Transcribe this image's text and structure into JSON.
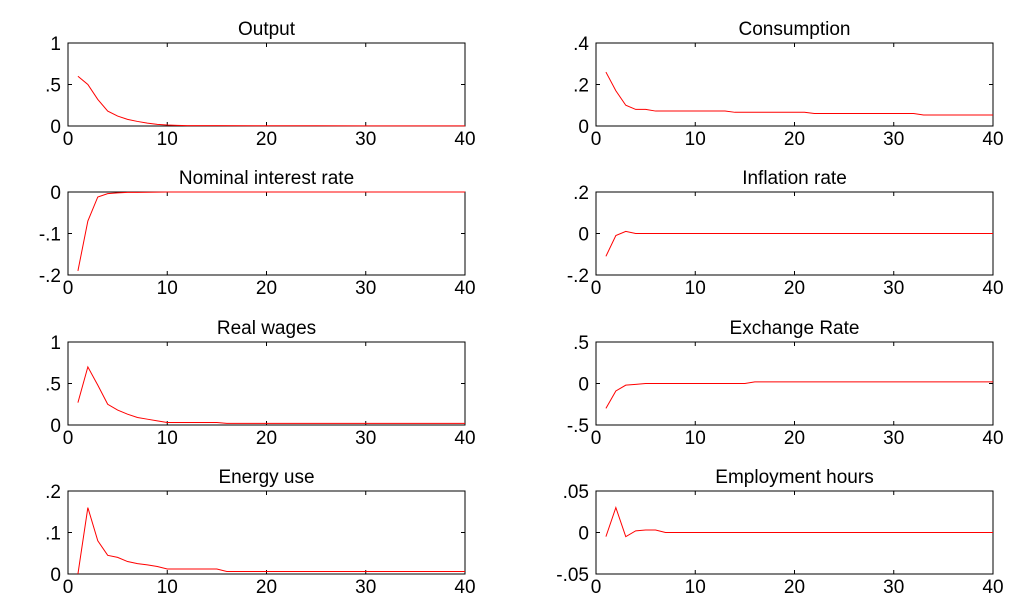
{
  "figure": {
    "line_color": "#ff0000",
    "axis_color": "#000000",
    "background": "#ffffff"
  },
  "chart_data": [
    {
      "type": "line",
      "title": "Output",
      "xlim": [
        0,
        40
      ],
      "ylim": [
        0,
        1
      ],
      "xticks": [
        0,
        10,
        20,
        30,
        40
      ],
      "yticks": [
        0,
        0.5,
        1
      ],
      "grid": false,
      "series": [
        {
          "color": "#ff0000",
          "x": [
            1,
            2,
            3,
            4,
            5,
            6,
            7,
            8,
            9,
            10,
            11,
            12,
            15,
            20,
            25,
            30,
            35,
            40
          ],
          "y": [
            0.6,
            0.5,
            0.32,
            0.18,
            0.12,
            0.08,
            0.055,
            0.035,
            0.02,
            0.012,
            0.008,
            0.005,
            0.004,
            0.003,
            0.003,
            0.002,
            0.002,
            0.002
          ]
        }
      ]
    },
    {
      "type": "line",
      "title": "Consumption",
      "xlim": [
        0,
        40
      ],
      "ylim": [
        0,
        0.4
      ],
      "xticks": [
        0,
        10,
        20,
        30,
        40
      ],
      "yticks": [
        0,
        0.2,
        0.4
      ],
      "grid": false,
      "series": [
        {
          "color": "#ff0000",
          "x": [
            1,
            2,
            3,
            4,
            5,
            6,
            7,
            13,
            14,
            21,
            22,
            32,
            33,
            40
          ],
          "y": [
            0.26,
            0.17,
            0.1,
            0.08,
            0.08,
            0.072,
            0.072,
            0.072,
            0.066,
            0.066,
            0.06,
            0.06,
            0.053,
            0.053
          ]
        }
      ]
    },
    {
      "type": "line",
      "title": "Nominal interest rate",
      "xlim": [
        0,
        40
      ],
      "ylim": [
        -0.2,
        0
      ],
      "xticks": [
        0,
        10,
        20,
        30,
        40
      ],
      "yticks": [
        -0.2,
        -0.1,
        0
      ],
      "grid": false,
      "series": [
        {
          "color": "#ff0000",
          "x": [
            1,
            2,
            3,
            4,
            5,
            6,
            7,
            10,
            20,
            30,
            40
          ],
          "y": [
            -0.19,
            -0.07,
            -0.012,
            -0.004,
            -0.002,
            -0.001,
            -0.001,
            0,
            0,
            0,
            0
          ]
        }
      ]
    },
    {
      "type": "line",
      "title": "Inflation rate",
      "xlim": [
        0,
        40
      ],
      "ylim": [
        -0.2,
        0.2
      ],
      "xticks": [
        0,
        10,
        20,
        30,
        40
      ],
      "yticks": [
        -0.2,
        0,
        0.2
      ],
      "grid": false,
      "series": [
        {
          "color": "#ff0000",
          "x": [
            1,
            2,
            3,
            4,
            5,
            10,
            20,
            30,
            40
          ],
          "y": [
            -0.11,
            -0.01,
            0.01,
            0.0,
            0.0,
            0.0,
            0.0,
            0.0,
            0.0
          ]
        }
      ]
    },
    {
      "type": "line",
      "title": "Real wages",
      "xlim": [
        0,
        40
      ],
      "ylim": [
        0,
        1
      ],
      "xticks": [
        0,
        10,
        20,
        30,
        40
      ],
      "yticks": [
        0,
        0.5,
        1
      ],
      "grid": false,
      "series": [
        {
          "color": "#ff0000",
          "x": [
            1,
            2,
            3,
            4,
            5,
            6,
            7,
            8,
            9,
            10,
            15,
            16,
            20,
            30,
            40
          ],
          "y": [
            0.27,
            0.7,
            0.48,
            0.25,
            0.18,
            0.13,
            0.09,
            0.07,
            0.05,
            0.03,
            0.03,
            0.02,
            0.02,
            0.02,
            0.02
          ]
        }
      ]
    },
    {
      "type": "line",
      "title": "Exchange Rate",
      "xlim": [
        0,
        40
      ],
      "ylim": [
        -0.5,
        0.5
      ],
      "xticks": [
        0,
        10,
        20,
        30,
        40
      ],
      "yticks": [
        -0.5,
        0,
        0.5
      ],
      "grid": false,
      "series": [
        {
          "color": "#ff0000",
          "x": [
            1,
            2,
            3,
            4,
            5,
            6,
            15,
            16,
            20,
            30,
            40
          ],
          "y": [
            -0.3,
            -0.09,
            -0.02,
            -0.01,
            0.0,
            0.0,
            0.0,
            0.02,
            0.02,
            0.02,
            0.02
          ]
        }
      ]
    },
    {
      "type": "line",
      "title": "Energy use",
      "xlim": [
        0,
        40
      ],
      "ylim": [
        0,
        0.2
      ],
      "xticks": [
        0,
        10,
        20,
        30,
        40
      ],
      "yticks": [
        0,
        0.1,
        0.2
      ],
      "grid": false,
      "series": [
        {
          "color": "#ff0000",
          "x": [
            1,
            2,
            3,
            4,
            5,
            6,
            7,
            8,
            9,
            10,
            15,
            16,
            20,
            30,
            40
          ],
          "y": [
            0.0,
            0.16,
            0.08,
            0.045,
            0.04,
            0.03,
            0.025,
            0.022,
            0.018,
            0.012,
            0.012,
            0.006,
            0.006,
            0.006,
            0.006
          ]
        }
      ]
    },
    {
      "type": "line",
      "title": "Employment hours",
      "xlim": [
        0,
        40
      ],
      "ylim": [
        -0.05,
        0.05
      ],
      "xticks": [
        0,
        10,
        20,
        30,
        40
      ],
      "yticks": [
        -0.05,
        0,
        0.05
      ],
      "grid": false,
      "series": [
        {
          "color": "#ff0000",
          "x": [
            1,
            2,
            3,
            4,
            5,
            6,
            7,
            8,
            10,
            20,
            30,
            40
          ],
          "y": [
            -0.005,
            0.03,
            -0.005,
            0.002,
            0.003,
            0.003,
            0.0,
            0.0,
            0.0,
            0.0,
            0.0,
            0.0
          ]
        }
      ]
    }
  ]
}
